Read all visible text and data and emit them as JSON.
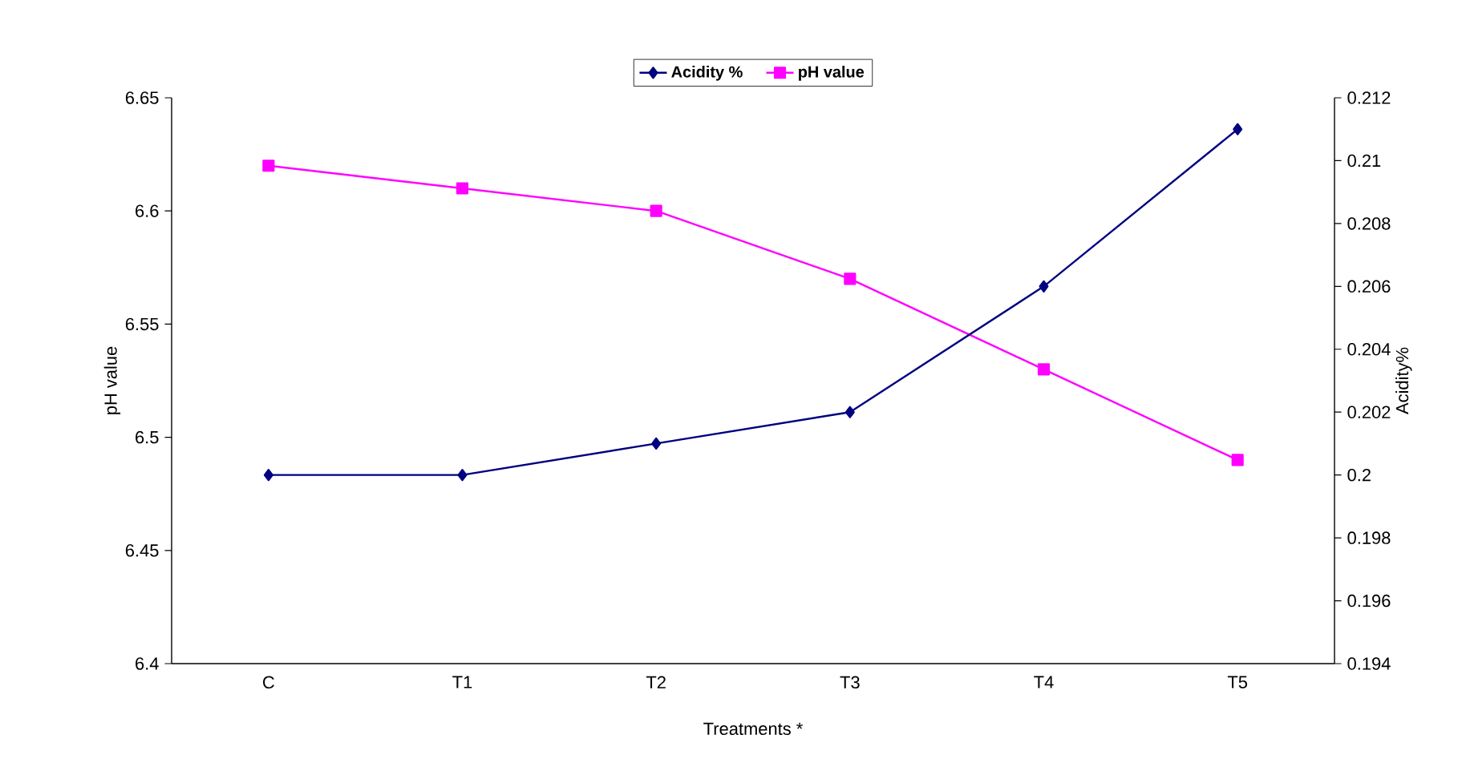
{
  "chart_data": {
    "type": "line",
    "xlabel": "Treatments *",
    "ylabel": "pH value",
    "y2label": "Acidity%",
    "categories": [
      "C",
      "T1",
      "T2",
      "T3",
      "T4",
      "T5"
    ],
    "series": [
      {
        "name": "Acidity %",
        "color": "#000080",
        "marker": "diamond",
        "axis": "y2",
        "values": [
          0.2,
          0.2,
          0.201,
          0.202,
          0.206,
          0.211
        ]
      },
      {
        "name": "pH value",
        "color": "#ff00ff",
        "marker": "square",
        "values": [
          6.62,
          6.61,
          6.6,
          6.57,
          6.53,
          6.49
        ]
      }
    ],
    "ylim": [
      6.4,
      6.65
    ],
    "yticks": [
      6.4,
      6.45,
      6.5,
      6.55,
      6.6,
      6.65
    ],
    "y2lim": [
      0.194,
      0.212
    ],
    "y2ticks": [
      0.194,
      0.196,
      0.198,
      0.2,
      0.202,
      0.204,
      0.206,
      0.208,
      0.21,
      0.212
    ],
    "legend": "top",
    "grid": false,
    "line_style": "solid"
  }
}
